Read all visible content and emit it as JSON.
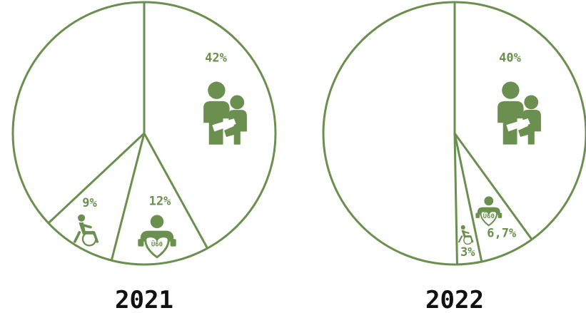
{
  "colors": {
    "accent": "#6a8f4e",
    "year_text": "#111111",
    "background": "#ffffff"
  },
  "chart_data": [
    {
      "type": "pie",
      "title": "2021",
      "slices": [
        {
          "label": "9%",
          "value": 9,
          "icon": "wheelchair-user-icon"
        },
        {
          "label": "12%",
          "value": 12,
          "icon": "senior-heart-icon",
          "icon_text": "Ü60"
        },
        {
          "label": "42%",
          "value": 42,
          "icon": "parent-child-icon"
        },
        {
          "label": "",
          "value": 37
        }
      ]
    },
    {
      "type": "pie",
      "title": "2022",
      "slices": [
        {
          "label": "3%",
          "value": 3,
          "icon": "wheelchair-user-icon"
        },
        {
          "label": "6,7%",
          "value": 6.7,
          "icon": "senior-heart-icon",
          "icon_text": "Ü60"
        },
        {
          "label": "40%",
          "value": 40,
          "icon": "parent-child-icon"
        },
        {
          "label": "",
          "value": 50.3
        }
      ]
    }
  ]
}
